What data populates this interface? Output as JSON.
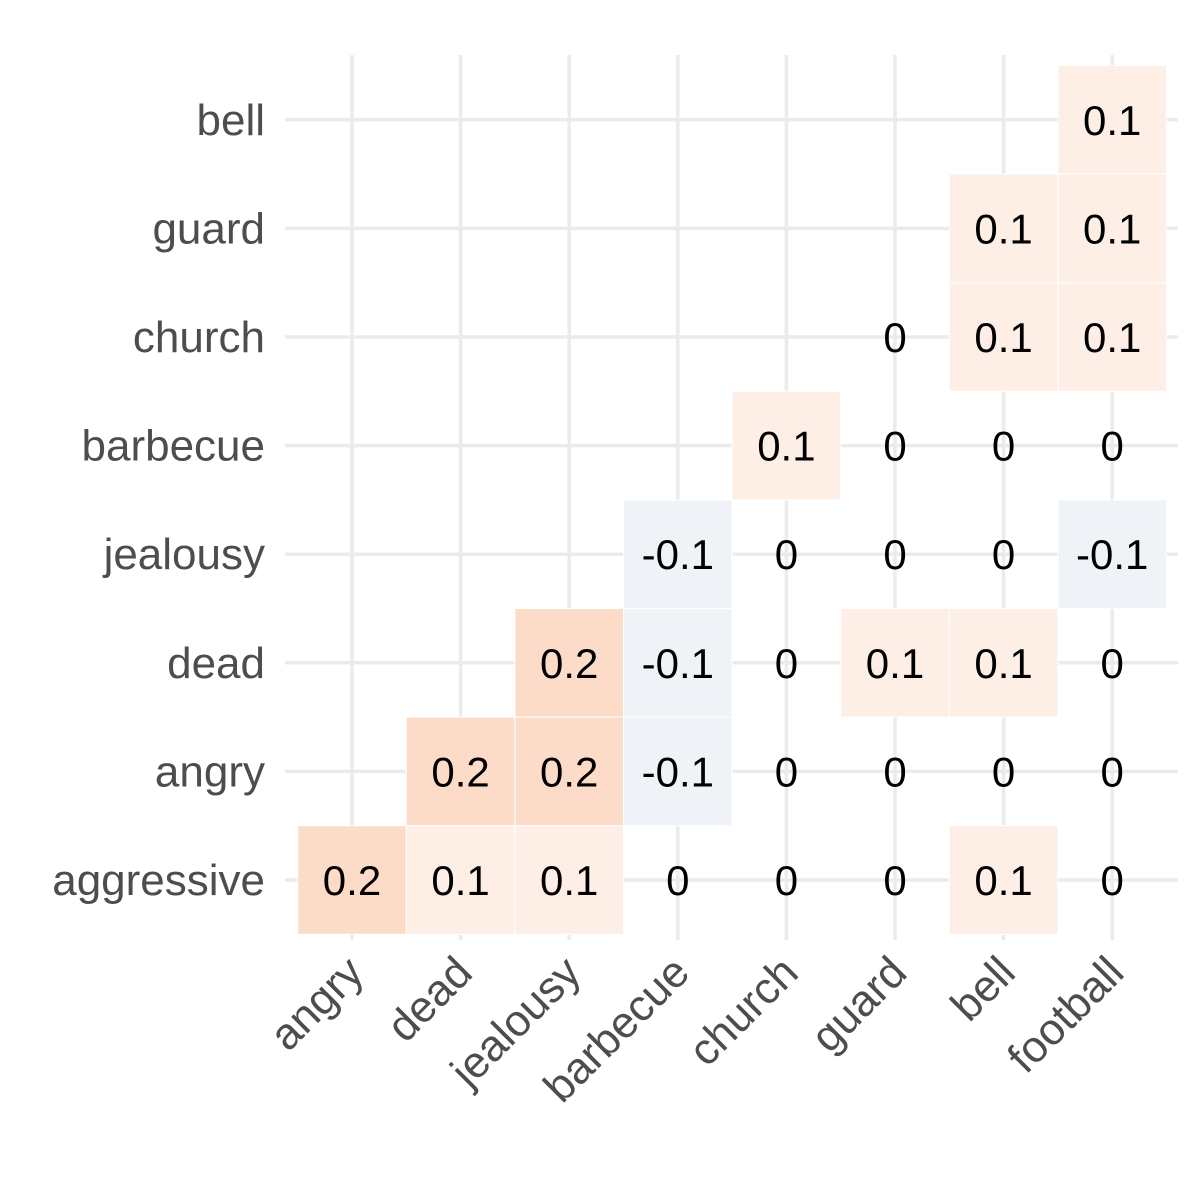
{
  "chart_data": {
    "type": "heatmap",
    "title": "",
    "xlabel": "",
    "ylabel": "",
    "x_categories": [
      "angry",
      "dead",
      "jealousy",
      "barbecue",
      "church",
      "guard",
      "bell",
      "football"
    ],
    "y_categories": [
      "aggressive",
      "angry",
      "dead",
      "jealousy",
      "barbecue",
      "church",
      "guard",
      "bell"
    ],
    "cells": [
      {
        "row": "aggressive",
        "col": "angry",
        "value": 0.2,
        "label": "0.2"
      },
      {
        "row": "aggressive",
        "col": "dead",
        "value": 0.1,
        "label": "0.1"
      },
      {
        "row": "aggressive",
        "col": "jealousy",
        "value": 0.1,
        "label": "0.1"
      },
      {
        "row": "aggressive",
        "col": "barbecue",
        "value": 0,
        "label": "0"
      },
      {
        "row": "aggressive",
        "col": "church",
        "value": 0,
        "label": "0"
      },
      {
        "row": "aggressive",
        "col": "guard",
        "value": 0,
        "label": "0"
      },
      {
        "row": "aggressive",
        "col": "bell",
        "value": 0.1,
        "label": "0.1"
      },
      {
        "row": "aggressive",
        "col": "football",
        "value": 0,
        "label": "0"
      },
      {
        "row": "angry",
        "col": "dead",
        "value": 0.2,
        "label": "0.2"
      },
      {
        "row": "angry",
        "col": "jealousy",
        "value": 0.2,
        "label": "0.2"
      },
      {
        "row": "angry",
        "col": "barbecue",
        "value": -0.1,
        "label": "-0.1"
      },
      {
        "row": "angry",
        "col": "church",
        "value": 0,
        "label": "0"
      },
      {
        "row": "angry",
        "col": "guard",
        "value": 0,
        "label": "0"
      },
      {
        "row": "angry",
        "col": "bell",
        "value": 0,
        "label": "0"
      },
      {
        "row": "angry",
        "col": "football",
        "value": 0,
        "label": "0"
      },
      {
        "row": "dead",
        "col": "jealousy",
        "value": 0.2,
        "label": "0.2"
      },
      {
        "row": "dead",
        "col": "barbecue",
        "value": -0.1,
        "label": "-0.1"
      },
      {
        "row": "dead",
        "col": "church",
        "value": 0,
        "label": "0"
      },
      {
        "row": "dead",
        "col": "guard",
        "value": 0.1,
        "label": "0.1"
      },
      {
        "row": "dead",
        "col": "bell",
        "value": 0.1,
        "label": "0.1"
      },
      {
        "row": "dead",
        "col": "football",
        "value": 0,
        "label": "0"
      },
      {
        "row": "jealousy",
        "col": "barbecue",
        "value": -0.1,
        "label": "-0.1"
      },
      {
        "row": "jealousy",
        "col": "church",
        "value": 0,
        "label": "0"
      },
      {
        "row": "jealousy",
        "col": "guard",
        "value": 0,
        "label": "0"
      },
      {
        "row": "jealousy",
        "col": "bell",
        "value": 0,
        "label": "0"
      },
      {
        "row": "jealousy",
        "col": "football",
        "value": -0.1,
        "label": "-0.1"
      },
      {
        "row": "barbecue",
        "col": "church",
        "value": 0.1,
        "label": "0.1"
      },
      {
        "row": "barbecue",
        "col": "guard",
        "value": 0,
        "label": "0"
      },
      {
        "row": "barbecue",
        "col": "bell",
        "value": 0,
        "label": "0"
      },
      {
        "row": "barbecue",
        "col": "football",
        "value": 0,
        "label": "0"
      },
      {
        "row": "church",
        "col": "guard",
        "value": 0,
        "label": "0"
      },
      {
        "row": "church",
        "col": "bell",
        "value": 0.1,
        "label": "0.1"
      },
      {
        "row": "church",
        "col": "football",
        "value": 0.1,
        "label": "0.1"
      },
      {
        "row": "guard",
        "col": "bell",
        "value": 0.1,
        "label": "0.1"
      },
      {
        "row": "guard",
        "col": "football",
        "value": 0.1,
        "label": "0.1"
      },
      {
        "row": "bell",
        "col": "football",
        "value": 0.1,
        "label": "0.1"
      }
    ],
    "grid": true,
    "legend": "none",
    "colors": {
      "positive_strong": "#fcdcc8",
      "positive_weak": "#fdefe6",
      "negative_weak": "#eff3f8",
      "grid": "#ebebeb",
      "tick_text": "#4d4d4d",
      "cell_text": "#000000"
    }
  }
}
